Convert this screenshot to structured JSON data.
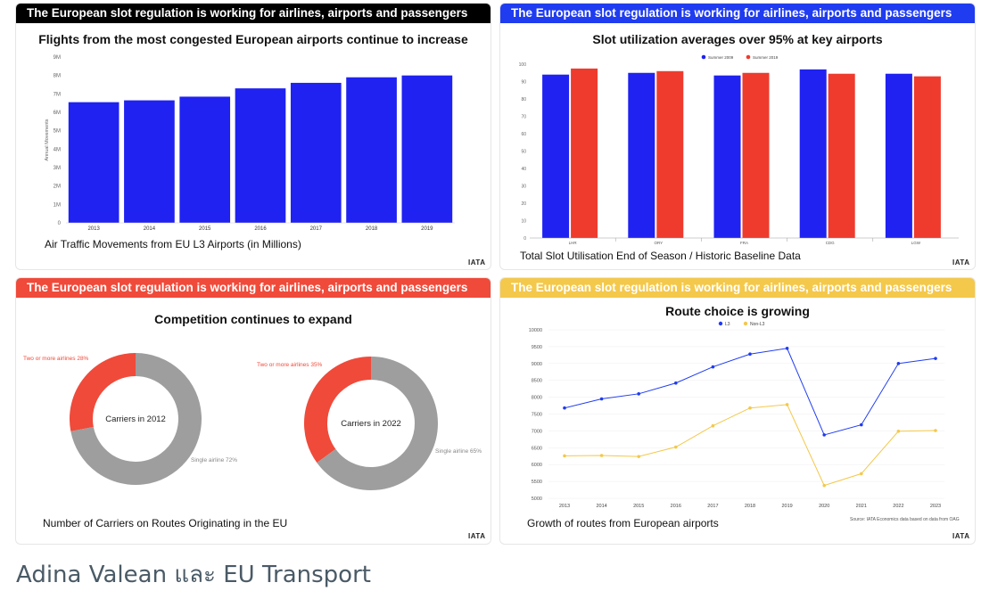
{
  "banner_text": "The European slot regulation is working for airlines, airports and passengers",
  "colors": {
    "blue": "#1f22f0",
    "red": "#ee3b2e",
    "yellow": "#f4c84a",
    "gray": "#9e9e9e",
    "black": "#000000",
    "orange_red": "#f04a3a",
    "banner_blue": "#1f3cf0"
  },
  "logo_text": "IATA",
  "footer": {
    "text": "Adina Valean และ EU Transport"
  },
  "panels": {
    "flights": {
      "title": "Flights from the most congested European airports continue to increase",
      "caption": "Air Traffic Movements from EU L3 Airports (in Millions)"
    },
    "slots": {
      "title": "Slot utilization averages over 95% at key airports",
      "caption": "Total Slot Utilisation End of Season / Historic Baseline Data"
    },
    "competition": {
      "title": "Competition continues to expand",
      "caption": "Number of Carriers on Routes Originating in the EU"
    },
    "routes": {
      "title": "Route choice is growing",
      "caption": "Growth of routes from European airports",
      "source": "Source: IATA Economics data based on data from OAG"
    }
  },
  "chart_data": [
    {
      "type": "bar",
      "categories": [
        "2013",
        "2014",
        "2015",
        "2016",
        "2017",
        "2018",
        "2019"
      ],
      "values": [
        6.55,
        6.65,
        6.85,
        7.3,
        7.6,
        7.9,
        8.0
      ],
      "ylabel": "Annual Movements",
      "yticks": [
        "0",
        "1M",
        "2M",
        "3M",
        "4M",
        "5M",
        "6M",
        "7M",
        "8M",
        "9M"
      ],
      "ylim": [
        0,
        9
      ]
    },
    {
      "type": "bar",
      "categories": [
        "LHR",
        "ORY",
        "FRA",
        "CDG",
        "LGW"
      ],
      "series": [
        {
          "name": "Summer 2009",
          "values": [
            94,
            95,
            93.5,
            97,
            94.5
          ]
        },
        {
          "name": "Summer 2019",
          "values": [
            97.5,
            96,
            95,
            94.5,
            93
          ]
        }
      ],
      "yticks": [
        "0",
        "10",
        "20",
        "30",
        "40",
        "50",
        "60",
        "70",
        "80",
        "90",
        "100"
      ],
      "ylim": [
        0,
        100
      ],
      "legend": "top-center"
    },
    {
      "type": "pie",
      "center_label": "Carriers in 2012",
      "slices": [
        {
          "label": "Two or more airlines 28%",
          "value": 28
        },
        {
          "label": "Single airline 72%",
          "value": 72
        }
      ]
    },
    {
      "type": "pie",
      "center_label": "Carriers in 2022",
      "slices": [
        {
          "label": "Two or more airlines 35%",
          "value": 35
        },
        {
          "label": "Single airline 65%",
          "value": 65
        }
      ]
    },
    {
      "type": "line",
      "x": [
        "2013",
        "2014",
        "2015",
        "2016",
        "2017",
        "2018",
        "2019",
        "2020",
        "2021",
        "2022",
        "2023"
      ],
      "series": [
        {
          "name": "L3",
          "values": [
            7680,
            7950,
            8100,
            8420,
            8900,
            9280,
            9450,
            6880,
            7180,
            9000,
            9150
          ]
        },
        {
          "name": "Non-L3",
          "values": [
            6260,
            6270,
            6240,
            6520,
            7150,
            7680,
            7780,
            5380,
            5730,
            6990,
            7010
          ]
        }
      ],
      "yticks": [
        "5000",
        "5500",
        "6000",
        "6500",
        "7000",
        "7500",
        "8000",
        "8500",
        "9000",
        "9500",
        "10000"
      ],
      "ylim": [
        5000,
        10000
      ],
      "legend": "top-center"
    }
  ]
}
